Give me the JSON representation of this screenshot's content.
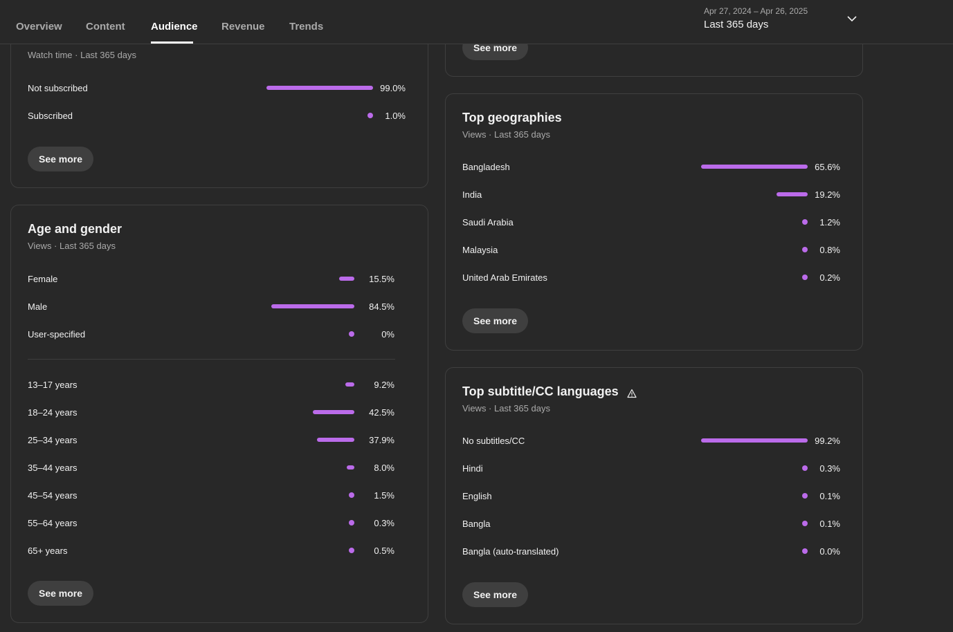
{
  "header": {
    "tabs": [
      {
        "label": "Overview"
      },
      {
        "label": "Content"
      },
      {
        "label": "Audience"
      },
      {
        "label": "Revenue"
      },
      {
        "label": "Trends"
      }
    ],
    "active_tab": "Audience",
    "date_range": "Apr 27, 2024 – Apr 26, 2025",
    "date_label": "Last 365 days"
  },
  "colors": {
    "accent": "#bb6bea",
    "background": "#282828",
    "card_border": "#3f3f3f",
    "button_bg": "#3f3f3f",
    "text_primary": "#f1f1f1",
    "text_secondary": "#aaaaaa"
  },
  "subscribers_card": {
    "subtitle": "Watch time · Last 365 days",
    "rows": [
      {
        "label": "Not subscribed",
        "value": "99.0%",
        "fraction": 0.99
      },
      {
        "label": "Subscribed",
        "value": "1.0%",
        "fraction": 0.01
      }
    ],
    "see_more": "See more"
  },
  "age_gender_card": {
    "title": "Age and gender",
    "subtitle": "Views · Last 365 days",
    "gender_rows": [
      {
        "label": "Female",
        "value": "15.5%",
        "fraction": 0.155
      },
      {
        "label": "Male",
        "value": "84.5%",
        "fraction": 0.845
      },
      {
        "label": "User-specified",
        "value": "0%",
        "fraction": 0
      }
    ],
    "age_rows": [
      {
        "label": "13–17 years",
        "value": "9.2%",
        "fraction": 0.092
      },
      {
        "label": "18–24 years",
        "value": "42.5%",
        "fraction": 0.425
      },
      {
        "label": "25–34 years",
        "value": "37.9%",
        "fraction": 0.379
      },
      {
        "label": "35–44 years",
        "value": "8.0%",
        "fraction": 0.08
      },
      {
        "label": "45–54 years",
        "value": "1.5%",
        "fraction": 0.015
      },
      {
        "label": "55–64 years",
        "value": "0.3%",
        "fraction": 0.003
      },
      {
        "label": "65+ years",
        "value": "0.5%",
        "fraction": 0.005
      }
    ],
    "see_more": "See more"
  },
  "top_card_partial": {
    "see_more": "See more"
  },
  "geographies_card": {
    "title": "Top geographies",
    "subtitle": "Views · Last 365 days",
    "rows": [
      {
        "label": "Bangladesh",
        "value": "65.6%",
        "fraction": 0.656
      },
      {
        "label": "India",
        "value": "19.2%",
        "fraction": 0.192
      },
      {
        "label": "Saudi Arabia",
        "value": "1.2%",
        "fraction": 0.012
      },
      {
        "label": "Malaysia",
        "value": "0.8%",
        "fraction": 0.008
      },
      {
        "label": "United Arab Emirates",
        "value": "0.2%",
        "fraction": 0.002
      }
    ],
    "see_more": "See more"
  },
  "subtitles_card": {
    "title": "Top subtitle/CC languages",
    "subtitle": "Views · Last 365 days",
    "rows": [
      {
        "label": "No subtitles/CC",
        "value": "99.2%",
        "fraction": 0.992
      },
      {
        "label": "Hindi",
        "value": "0.3%",
        "fraction": 0.003
      },
      {
        "label": "English",
        "value": "0.1%",
        "fraction": 0.001
      },
      {
        "label": "Bangla",
        "value": "0.1%",
        "fraction": 0.001
      },
      {
        "label": "Bangla (auto-translated)",
        "value": "0.0%",
        "fraction": 0
      }
    ],
    "see_more": "See more",
    "title_icon": "warning-icon"
  }
}
